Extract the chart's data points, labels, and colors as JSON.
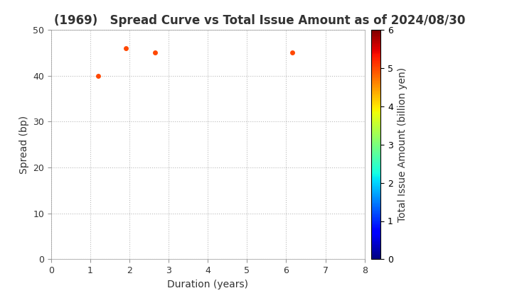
{
  "title": "(1969)   Spread Curve vs Total Issue Amount as of 2024/08/30",
  "xlabel": "Duration (years)",
  "ylabel": "Spread (bp)",
  "colorbar_label": "Total Issue Amount (billion yen)",
  "points": [
    {
      "duration": 1.2,
      "spread": 40,
      "amount": 5.0
    },
    {
      "duration": 1.9,
      "spread": 46,
      "amount": 5.0
    },
    {
      "duration": 2.65,
      "spread": 45,
      "amount": 5.0
    },
    {
      "duration": 6.15,
      "spread": 45,
      "amount": 5.0
    }
  ],
  "xlim": [
    0,
    8
  ],
  "ylim": [
    0,
    50
  ],
  "xticks": [
    0,
    1,
    2,
    3,
    4,
    5,
    6,
    7,
    8
  ],
  "yticks": [
    0,
    10,
    20,
    30,
    40,
    50
  ],
  "colorbar_min": 0,
  "colorbar_max": 6,
  "grid_color": "#bbbbbb",
  "background_color": "#ffffff",
  "title_fontsize": 12,
  "axis_fontsize": 10,
  "marker_size": 25,
  "title_color": "#333333"
}
